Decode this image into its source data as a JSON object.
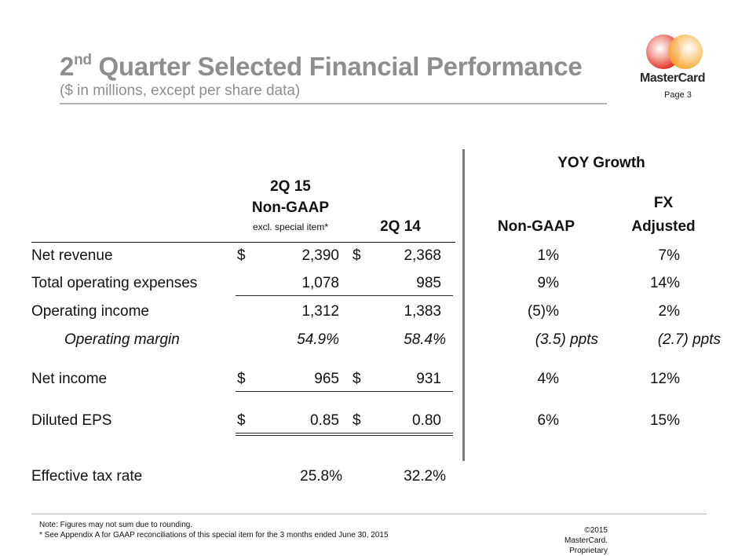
{
  "header": {
    "title_ordinal": "2",
    "title_superscript": "nd",
    "title_rest": " Quarter Selected Financial Performance",
    "subtitle": "($ in millions, except per share data)",
    "page_label": "Page 3",
    "logo_text": "MasterCard"
  },
  "colors": {
    "title_gray": "#8e8e8e",
    "logo_red": "#e2231a",
    "logo_orange": "#f79e1b"
  },
  "columns": {
    "group_yoy": "YOY Growth",
    "c1_line1": "2Q 15",
    "c1_line2": "Non-GAAP",
    "c1_line3": "excl. special item*",
    "c2": "2Q 14",
    "c3": "Non-GAAP",
    "c4_line1": "FX",
    "c4_line2": "Adjusted"
  },
  "rows": [
    {
      "label": "Net revenue",
      "d1": "$",
      "v1": "2,390",
      "d2": "$",
      "v2": "2,368",
      "g1": "1%",
      "g2": "7%"
    },
    {
      "label": "Total operating expenses",
      "d1": "",
      "v1": "1,078",
      "d2": "",
      "v2": "985",
      "g1": "9%",
      "g2": "14%"
    },
    {
      "label": "Operating income",
      "d1": "",
      "v1": "1,312",
      "d2": "",
      "v2": "1,383",
      "g1": "(5)%",
      "g2": "2%"
    },
    {
      "label": "Operating margin",
      "d1": "",
      "v1": "54.9%",
      "d2": "",
      "v2": "58.4%",
      "g1": "(3.5) ppts",
      "g2": "(2.7) ppts"
    },
    {
      "label": "Net income",
      "d1": "$",
      "v1": "965",
      "d2": "$",
      "v2": "931",
      "g1": "4%",
      "g2": "12%"
    },
    {
      "label": "Diluted EPS",
      "d1": "$",
      "v1": "0.85",
      "d2": "$",
      "v2": "0.80",
      "g1": "6%",
      "g2": "15%"
    },
    {
      "label": "Effective tax rate",
      "d1": "",
      "v1": "25.8%",
      "d2": "",
      "v2": "32.2%",
      "g1": "",
      "g2": ""
    }
  ],
  "footer": {
    "note1": "Note: Figures may not sum due to rounding.",
    "note2": "* See Appendix A for GAAP reconciliations of this special item for the 3 months ended June 30, 2015",
    "copyright": "©2015 MasterCard. Proprietary"
  }
}
